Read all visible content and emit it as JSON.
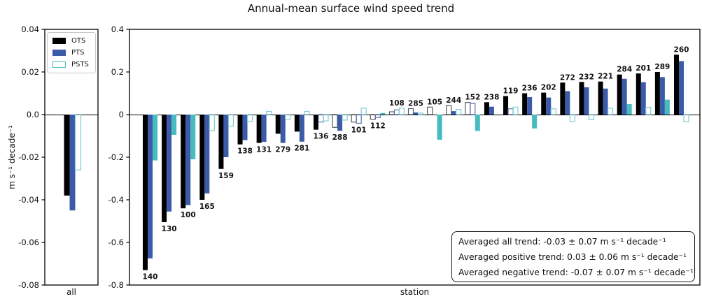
{
  "chart_data": {
    "type": "bar",
    "title": "Annual-mean surface wind speed trend",
    "ylabel": "m s⁻¹ decade⁻¹",
    "series_names": [
      "OTS",
      "PTS",
      "PSTS"
    ],
    "colors": {
      "ots": "#000000",
      "pts": "#3b5ba9",
      "psts": "#46bcc0",
      "ots_outline": "#565b60",
      "pts_outline": "#5f71b0",
      "psts_outline": "#7fccd5"
    },
    "left_panel": {
      "xlabel": "all",
      "ylim": [
        -0.08,
        0.04
      ],
      "yticks": [
        "0.04",
        "0.02",
        "0.0",
        "-0.02",
        "-0.04",
        "-0.06",
        "-0.08"
      ],
      "bars": {
        "ots": {
          "value": -0.038,
          "filled": true
        },
        "pts": {
          "value": -0.045,
          "filled": true
        },
        "psts": {
          "value": -0.026,
          "filled": false
        }
      }
    },
    "right_panel": {
      "xlabel": "station",
      "ylim": [
        -0.8,
        0.4
      ],
      "yticks": [
        "0.4",
        "0.2",
        "0",
        "-0.2",
        "-0.4",
        "-0.6",
        "-0.8"
      ],
      "stations": [
        {
          "id": "140",
          "ots": {
            "value": -0.73,
            "filled": true
          },
          "pts": {
            "value": -0.675,
            "filled": true
          },
          "psts": {
            "value": -0.215,
            "filled": true
          }
        },
        {
          "id": "130",
          "ots": {
            "value": -0.505,
            "filled": true
          },
          "pts": {
            "value": -0.455,
            "filled": true
          },
          "psts": {
            "value": -0.095,
            "filled": true
          }
        },
        {
          "id": "100",
          "ots": {
            "value": -0.44,
            "filled": true
          },
          "pts": {
            "value": -0.425,
            "filled": true
          },
          "psts": {
            "value": -0.21,
            "filled": true
          }
        },
        {
          "id": "165",
          "ots": {
            "value": -0.4,
            "filled": true
          },
          "pts": {
            "value": -0.37,
            "filled": true
          },
          "psts": {
            "value": -0.075,
            "filled": false
          }
        },
        {
          "id": "159",
          "ots": {
            "value": -0.255,
            "filled": true
          },
          "pts": {
            "value": -0.2,
            "filled": true
          },
          "psts": {
            "value": -0.055,
            "filled": false
          }
        },
        {
          "id": "138",
          "ots": {
            "value": -0.14,
            "filled": true
          },
          "pts": {
            "value": -0.12,
            "filled": true
          },
          "psts": {
            "value": -0.033,
            "filled": false
          }
        },
        {
          "id": "131",
          "ots": {
            "value": -0.133,
            "filled": true
          },
          "pts": {
            "value": -0.128,
            "filled": true
          },
          "psts": {
            "value": 0.015,
            "filled": false
          }
        },
        {
          "id": "279",
          "ots": {
            "value": -0.09,
            "filled": true
          },
          "pts": {
            "value": -0.133,
            "filled": true
          },
          "psts": {
            "value": -0.022,
            "filled": false
          }
        },
        {
          "id": "281",
          "ots": {
            "value": -0.08,
            "filled": true
          },
          "pts": {
            "value": -0.127,
            "filled": true
          },
          "psts": {
            "value": 0.015,
            "filled": false
          }
        },
        {
          "id": "136",
          "ots": {
            "value": -0.071,
            "filled": true
          },
          "pts": {
            "value": -0.035,
            "filled": false
          },
          "psts": {
            "value": -0.03,
            "filled": false
          }
        },
        {
          "id": "288",
          "ots": {
            "value": -0.06,
            "filled": false
          },
          "pts": {
            "value": -0.076,
            "filled": true
          },
          "psts": {
            "value": -0.026,
            "filled": false
          }
        },
        {
          "id": "101",
          "ots": {
            "value": -0.035,
            "filled": false
          },
          "pts": {
            "value": -0.041,
            "filled": false
          },
          "psts": {
            "value": 0.03,
            "filled": false
          }
        },
        {
          "id": "112",
          "ots": {
            "value": -0.022,
            "filled": false
          },
          "pts": {
            "value": -0.014,
            "filled": false
          },
          "psts": {
            "value": 0.007,
            "filled": true
          }
        },
        {
          "id": "108",
          "ots": {
            "value": 0.013,
            "filled": false
          },
          "pts": {
            "value": 0.022,
            "filled": false
          },
          "psts": {
            "value": 0.03,
            "filled": false
          }
        },
        {
          "id": "285",
          "ots": {
            "value": 0.028,
            "filled": false
          },
          "pts": {
            "value": 0.01,
            "filled": true
          },
          "psts": {
            "value": 0.007,
            "filled": false
          }
        },
        {
          "id": "105",
          "ots": {
            "value": 0.035,
            "filled": false
          },
          "pts": {
            "value": 0,
            "filled": true
          },
          "psts": {
            "value": -0.118,
            "filled": true
          }
        },
        {
          "id": "244",
          "ots": {
            "value": 0.042,
            "filled": false
          },
          "pts": {
            "value": 0.016,
            "filled": true
          },
          "psts": {
            "value": 0.024,
            "filled": false
          }
        },
        {
          "id": "152",
          "ots": {
            "value": 0.057,
            "filled": false
          },
          "pts": {
            "value": 0.052,
            "filled": false
          },
          "psts": {
            "value": -0.077,
            "filled": true
          }
        },
        {
          "id": "238",
          "ots": {
            "value": 0.058,
            "filled": true
          },
          "pts": {
            "value": 0.037,
            "filled": true
          },
          "psts": {
            "value": 0,
            "filled": true
          }
        },
        {
          "id": "119",
          "ots": {
            "value": 0.087,
            "filled": true
          },
          "pts": {
            "value": 0.027,
            "filled": false
          },
          "psts": {
            "value": 0.035,
            "filled": false
          }
        },
        {
          "id": "236",
          "ots": {
            "value": 0.1,
            "filled": true
          },
          "pts": {
            "value": 0.082,
            "filled": true
          },
          "psts": {
            "value": -0.065,
            "filled": true
          }
        },
        {
          "id": "202",
          "ots": {
            "value": 0.103,
            "filled": true
          },
          "pts": {
            "value": 0.08,
            "filled": true
          },
          "psts": {
            "value": 0.027,
            "filled": false
          }
        },
        {
          "id": "272",
          "ots": {
            "value": 0.15,
            "filled": true
          },
          "pts": {
            "value": 0.11,
            "filled": true
          },
          "psts": {
            "value": -0.033,
            "filled": false
          }
        },
        {
          "id": "232",
          "ots": {
            "value": 0.153,
            "filled": true
          },
          "pts": {
            "value": 0.128,
            "filled": true
          },
          "psts": {
            "value": -0.024,
            "filled": false
          }
        },
        {
          "id": "221",
          "ots": {
            "value": 0.155,
            "filled": true
          },
          "pts": {
            "value": 0.122,
            "filled": true
          },
          "psts": {
            "value": 0.03,
            "filled": false
          }
        },
        {
          "id": "284",
          "ots": {
            "value": 0.188,
            "filled": true
          },
          "pts": {
            "value": 0.168,
            "filled": true
          },
          "psts": {
            "value": 0.049,
            "filled": true
          }
        },
        {
          "id": "201",
          "ots": {
            "value": 0.193,
            "filled": true
          },
          "pts": {
            "value": 0.152,
            "filled": true
          },
          "psts": {
            "value": 0.034,
            "filled": false
          }
        },
        {
          "id": "289",
          "ots": {
            "value": 0.2,
            "filled": true
          },
          "pts": {
            "value": 0.176,
            "filled": true
          },
          "psts": {
            "value": 0.07,
            "filled": true
          }
        },
        {
          "id": "260",
          "ots": {
            "value": 0.281,
            "filled": true
          },
          "pts": {
            "value": 0.251,
            "filled": true
          },
          "psts": {
            "value": -0.034,
            "filled": false
          }
        }
      ]
    }
  },
  "legend": {
    "items": [
      {
        "label": "OTS",
        "style": "ots-solid"
      },
      {
        "label": "PTS",
        "style": "pts-solid"
      },
      {
        "label": "PSTS",
        "style": "psts-outline"
      }
    ]
  },
  "annotation": {
    "lines": [
      "Averaged all trend: -0.03 ± 0.07 m s⁻¹ decade⁻¹",
      "Averaged positive trend: 0.03 ± 0.06 m s⁻¹ decade⁻¹",
      "Averaged negative trend: -0.07 ± 0.07 m s⁻¹ decade⁻¹"
    ]
  }
}
